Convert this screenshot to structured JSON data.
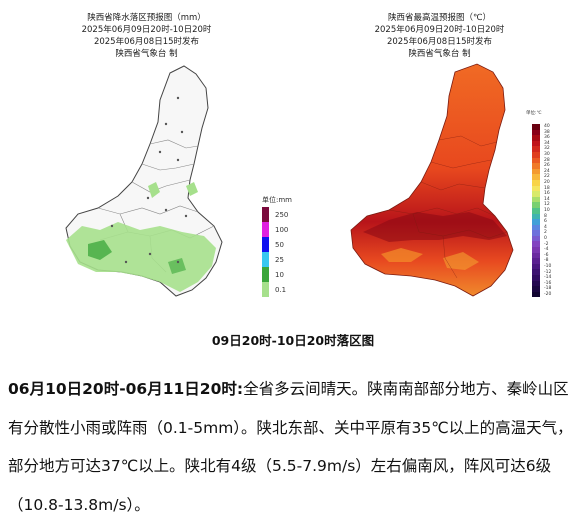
{
  "rain_map": {
    "title": "陕西省降水落区预报图（mm）",
    "period": "2025年06月09日20时-10日20时",
    "issued": "2025年06月08日15时发布",
    "agency": "陕西省气象台 制",
    "legend": {
      "unit_label": "单位:mm",
      "entries": [
        {
          "label": "250",
          "color": "#7a0a3c"
        },
        {
          "label": "100",
          "color": "#e020e0"
        },
        {
          "label": "50",
          "color": "#1010f0"
        },
        {
          "label": "25",
          "color": "#38c8f0"
        },
        {
          "label": "10",
          "color": "#3aa63a"
        },
        {
          "label": "0.1",
          "color": "#a6e08c"
        }
      ]
    }
  },
  "temp_map": {
    "title": "陕西省最高温预报图（℃）",
    "period": "2025年06月09日20时-10日20时",
    "issued": "2025年06月08日15时发布",
    "agency": "陕西省气象台 制",
    "legend": {
      "unit_label": "单位:℃",
      "labels": [
        "40",
        "38",
        "36",
        "34",
        "32",
        "30",
        "28",
        "26",
        "24",
        "22",
        "20",
        "18",
        "16",
        "14",
        "12",
        "10",
        "8",
        "6",
        "4",
        "2",
        "0",
        "-2",
        "-4",
        "-6",
        "-8",
        "-10",
        "-12",
        "-14",
        "-16",
        "-18",
        "-20"
      ],
      "colors": [
        "#6a0010",
        "#8a0018",
        "#a80a14",
        "#c0141a",
        "#d2281c",
        "#e03e1e",
        "#ea5a22",
        "#f07a28",
        "#f49a30",
        "#f8b83c",
        "#f8d448",
        "#f4e660",
        "#d8ea6a",
        "#a8de6c",
        "#78d070",
        "#50c28a",
        "#40b4b0",
        "#40a0d8",
        "#5a86e0",
        "#6e70dc",
        "#7a5ad0",
        "#8244c0",
        "#7a36b0",
        "#6a2aa0",
        "#5a2090",
        "#4a1880",
        "#3c1270",
        "#300c60",
        "#240850",
        "#1a0640",
        "#100430"
      ]
    }
  },
  "caption": "09日20时-10日20时落区图",
  "forecast": {
    "date_range": "06月10日20时-06月11日20时:",
    "body": "全省多云间晴天。陕南南部部分地方、秦岭山区有分散性小雨或阵雨（0.1-5mm）。陕北东部、关中平原有35℃以上的高温天气，部分地方可达37℃以上。陕北有4级（5.5-7.9m/s）左右偏南风，阵风可达6级（10.8-13.8m/s）。"
  }
}
